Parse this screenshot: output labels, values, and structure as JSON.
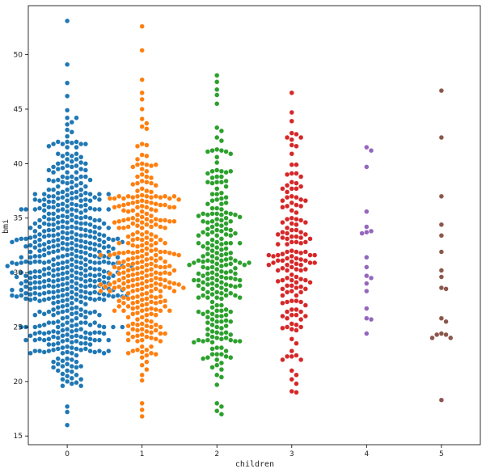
{
  "chart_data": {
    "type": "scatter",
    "subtype": "swarm",
    "title": "",
    "xlabel": "children",
    "ylabel": "bmi",
    "categories": [
      "0",
      "1",
      "2",
      "3",
      "4",
      "5"
    ],
    "ylim": [
      14.2,
      54.5
    ],
    "yticks": [
      15,
      20,
      25,
      30,
      35,
      40,
      45,
      50
    ],
    "grid": false,
    "legend": "none",
    "colors": [
      "#1f77b4",
      "#ff7f0e",
      "#2ca02c",
      "#d62728",
      "#9467bd",
      "#8c564b"
    ],
    "group_sizes": [
      574,
      324,
      240,
      157,
      18,
      18
    ],
    "highlight_values": {
      "0": [
        53.1,
        49.1,
        47.4,
        46.2,
        44.9,
        44.2,
        16.0,
        17.2,
        17.7
      ],
      "1": [
        52.6,
        50.4,
        47.7,
        46.5,
        45.9,
        45.0,
        16.8,
        17.4,
        18.0
      ],
      "2": [
        48.1,
        47.5,
        46.8,
        46.3,
        45.5,
        17.0,
        17.3,
        17.7,
        18.0
      ],
      "3": [
        46.5,
        44.7,
        43.9,
        42.8,
        41.6,
        19.0,
        19.1,
        19.8
      ]
    },
    "series": [
      {
        "category": "4",
        "values": [
          41.5,
          41.2,
          39.7,
          35.6,
          34.2,
          33.8,
          33.7,
          33.6,
          31.4,
          30.5,
          29.7,
          29.5,
          29.0,
          28.3,
          26.7,
          25.8,
          25.7,
          24.4
        ]
      },
      {
        "category": "5",
        "values": [
          46.7,
          42.4,
          37.0,
          34.4,
          33.4,
          31.9,
          30.2,
          29.6,
          28.6,
          28.5,
          25.8,
          25.5,
          24.4,
          24.3,
          24.3,
          24.0,
          24.0,
          18.3
        ]
      }
    ]
  }
}
